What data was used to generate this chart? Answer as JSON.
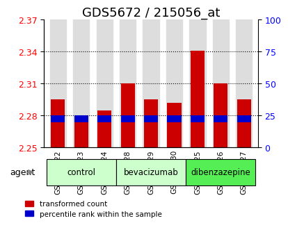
{
  "title": "GDS5672 / 215056_at",
  "samples": [
    "GSM958322",
    "GSM958323",
    "GSM958324",
    "GSM958328",
    "GSM958329",
    "GSM958330",
    "GSM958325",
    "GSM958326",
    "GSM958327"
  ],
  "red_values": [
    2.295,
    2.277,
    2.285,
    2.31,
    2.295,
    2.292,
    2.341,
    2.31,
    2.295
  ],
  "blue_values": [
    2.277,
    2.277,
    2.277,
    2.277,
    2.277,
    2.277,
    2.277,
    2.277,
    2.277
  ],
  "base": 2.25,
  "ylim_left": [
    2.25,
    2.37
  ],
  "yticks_left": [
    2.25,
    2.28,
    2.31,
    2.34,
    2.37
  ],
  "yticks_right": [
    0,
    25,
    50,
    75,
    100
  ],
  "groups": [
    {
      "label": "control",
      "indices": [
        0,
        1,
        2
      ],
      "color": "#ccffcc"
    },
    {
      "label": "bevacizumab",
      "indices": [
        3,
        4,
        5
      ],
      "color": "#ccffcc"
    },
    {
      "label": "dibenzazepine",
      "indices": [
        6,
        7,
        8
      ],
      "color": "#55ee55"
    }
  ],
  "bar_width": 0.6,
  "red_color": "#cc0000",
  "blue_color": "#0000cc",
  "agent_label": "agent",
  "legend_red": "transformed count",
  "legend_blue": "percentile rank within the sample",
  "bar_bg_color": "#dddddd",
  "title_fontsize": 13,
  "tick_fontsize": 9
}
